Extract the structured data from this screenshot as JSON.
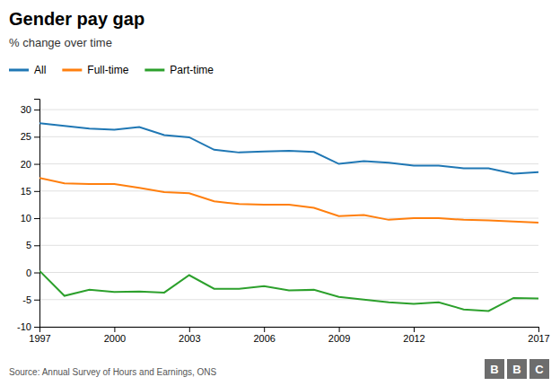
{
  "chart_data": {
    "type": "line",
    "title": "Gender pay gap",
    "subtitle": "% change over time",
    "source": "Source: Annual Survey of Hours and Earnings, ONS",
    "logo": [
      "B",
      "B",
      "C"
    ],
    "x": [
      1997,
      1998,
      1999,
      2000,
      2001,
      2002,
      2003,
      2004,
      2005,
      2006,
      2007,
      2008,
      2009,
      2010,
      2011,
      2012,
      2013,
      2014,
      2015,
      2016,
      2017
    ],
    "series": [
      {
        "name": "All",
        "values": [
          27.5,
          27.0,
          26.5,
          26.3,
          26.8,
          25.3,
          24.9,
          22.6,
          22.1,
          22.3,
          22.4,
          22.2,
          20.0,
          20.5,
          20.2,
          19.7,
          19.7,
          19.2,
          19.2,
          18.2,
          18.5
        ]
      },
      {
        "name": "Full-time",
        "values": [
          17.4,
          16.4,
          16.3,
          16.3,
          15.6,
          14.8,
          14.6,
          13.1,
          12.6,
          12.5,
          12.5,
          11.9,
          10.4,
          10.6,
          9.7,
          10.0,
          10.0,
          9.7,
          9.6,
          9.4,
          9.2
        ]
      },
      {
        "name": "Part-time",
        "values": [
          0.3,
          -4.3,
          -3.2,
          -3.6,
          -3.5,
          -3.7,
          -0.5,
          -3.0,
          -3.0,
          -2.5,
          -3.3,
          -3.2,
          -4.5,
          -5.0,
          -5.5,
          -5.8,
          -5.5,
          -6.8,
          -7.1,
          -4.7,
          -4.8
        ]
      }
    ],
    "xlim": [
      1997,
      2017
    ],
    "xticks": [
      1997,
      2000,
      2003,
      2006,
      2009,
      2012,
      2017
    ],
    "ylim": [
      -10,
      32
    ],
    "yticks": [
      -10,
      -5,
      0,
      5,
      10,
      15,
      20,
      25,
      30
    ],
    "grid": true,
    "legend": "upper left"
  }
}
